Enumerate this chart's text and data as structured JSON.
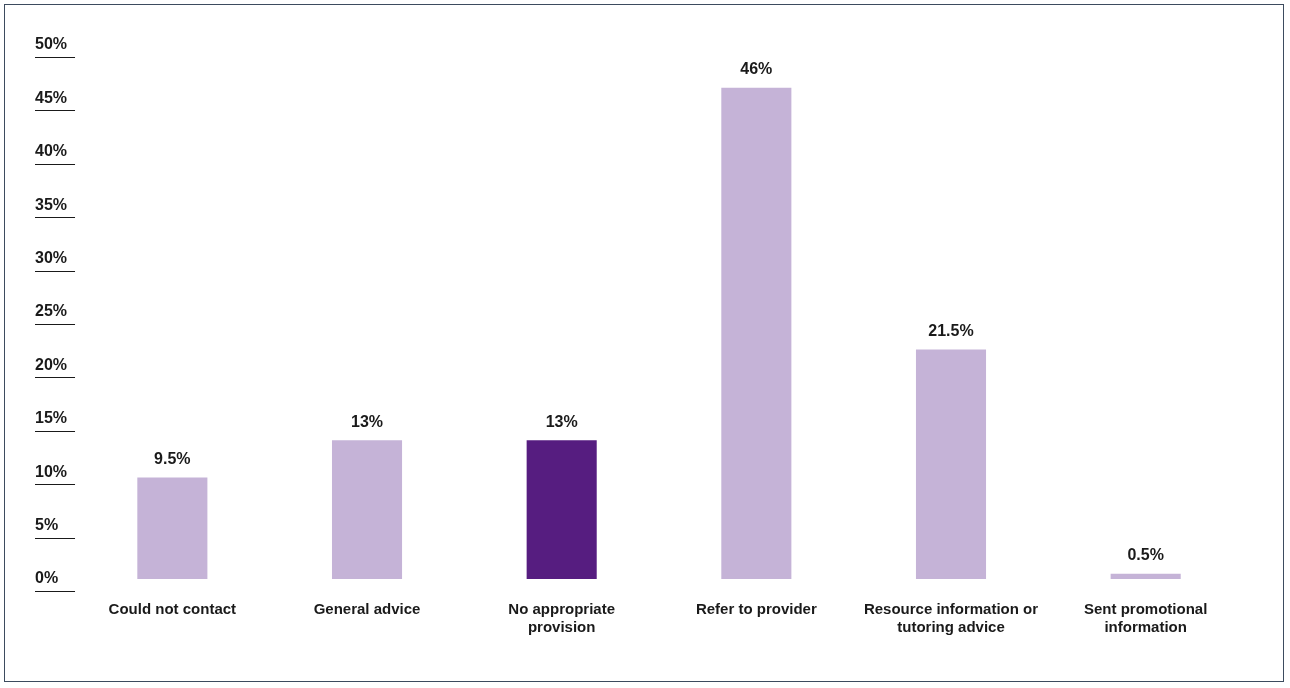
{
  "chart_data": {
    "type": "bar",
    "categories": [
      "Could not contact",
      "General advice",
      "No appropriate provision",
      "Refer to provider",
      "Resource information or tutoring advice",
      "Sent promotional information"
    ],
    "values": [
      9.5,
      13,
      13,
      46,
      21.5,
      0.5
    ],
    "colors": [
      "#c5b3d7",
      "#c5b3d7",
      "#561d80",
      "#c5b3d7",
      "#c5b3d7",
      "#c5b3d7"
    ],
    "value_labels": [
      "9.5%",
      "13%",
      "13%",
      "46%",
      "21.5%",
      "0.5%"
    ],
    "ylim": [
      0,
      50
    ],
    "yticks": [
      {
        "value": 0,
        "label": "0%"
      },
      {
        "value": 5,
        "label": "5%"
      },
      {
        "value": 10,
        "label": "10%"
      },
      {
        "value": 15,
        "label": "15%"
      },
      {
        "value": 20,
        "label": "20%"
      },
      {
        "value": 25,
        "label": "25%"
      },
      {
        "value": 30,
        "label": "30%"
      },
      {
        "value": 35,
        "label": "35%"
      },
      {
        "value": 40,
        "label": "40%"
      },
      {
        "value": 45,
        "label": "45%"
      },
      {
        "value": 50,
        "label": "50%"
      }
    ],
    "grid": false,
    "legend": false
  }
}
